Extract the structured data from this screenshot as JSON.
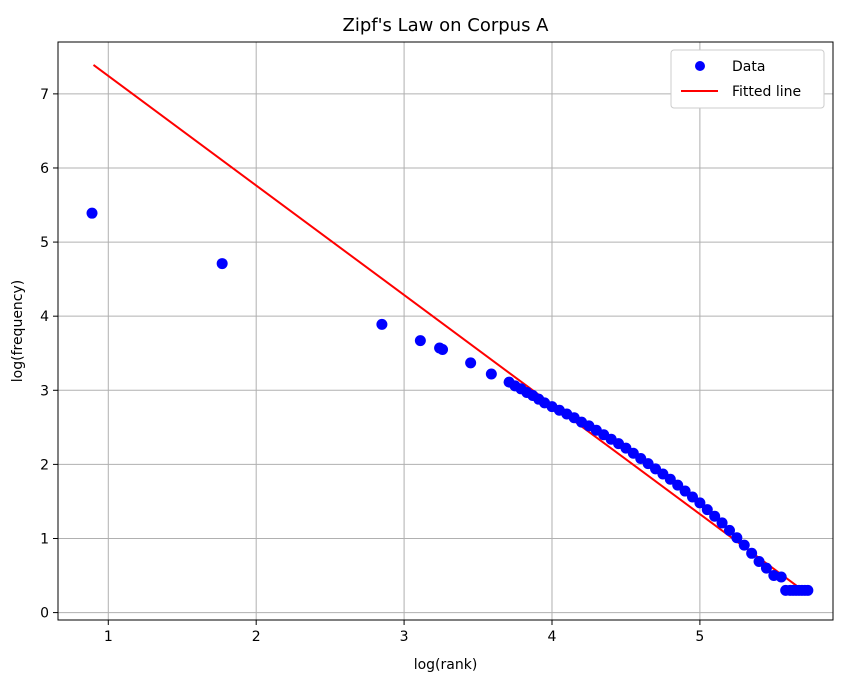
{
  "chart_data": {
    "type": "scatter",
    "title": "Zipf's Law on Corpus A",
    "xlabel": "log(rank)",
    "ylabel": "log(frequency)",
    "xlim": [
      0.66,
      5.9
    ],
    "ylim": [
      -0.1,
      7.7
    ],
    "xticks": [
      1,
      2,
      3,
      4,
      5
    ],
    "yticks": [
      0,
      1,
      2,
      3,
      4,
      5,
      6,
      7
    ],
    "grid": true,
    "legend_position": "top-right",
    "series": [
      {
        "name": "Data",
        "kind": "scatter",
        "color": "#0000ff",
        "x": [
          0.89,
          1.77,
          2.85,
          3.11,
          3.24,
          3.26,
          3.45,
          3.59,
          3.71,
          3.75,
          3.79,
          3.83,
          3.87,
          3.91,
          3.95,
          4.0,
          4.05,
          4.1,
          4.15,
          4.2,
          4.25,
          4.3,
          4.35,
          4.4,
          4.45,
          4.5,
          4.55,
          4.6,
          4.65,
          4.7,
          4.75,
          4.8,
          4.85,
          4.9,
          4.95,
          5.0,
          5.05,
          5.1,
          5.15,
          5.2,
          5.25,
          5.3,
          5.35,
          5.4,
          5.45,
          5.5,
          5.55,
          5.58,
          5.61,
          5.63,
          5.65,
          5.67,
          5.69,
          5.71,
          5.73
        ],
        "y": [
          5.39,
          4.71,
          3.89,
          3.67,
          3.57,
          3.55,
          3.37,
          3.22,
          3.11,
          3.06,
          3.02,
          2.97,
          2.93,
          2.88,
          2.83,
          2.78,
          2.73,
          2.68,
          2.63,
          2.57,
          2.52,
          2.46,
          2.4,
          2.34,
          2.28,
          2.22,
          2.15,
          2.08,
          2.01,
          1.94,
          1.87,
          1.8,
          1.72,
          1.64,
          1.56,
          1.48,
          1.39,
          1.3,
          1.21,
          1.11,
          1.01,
          0.91,
          0.8,
          0.69,
          0.6,
          0.5,
          0.48,
          0.3,
          0.3,
          0.3,
          0.3,
          0.3,
          0.3,
          0.3,
          0.3
        ]
      },
      {
        "name": "Fitted line",
        "kind": "line",
        "color": "#ff0000",
        "x": [
          0.9,
          5.73
        ],
        "y": [
          7.39,
          0.25
        ]
      }
    ]
  }
}
